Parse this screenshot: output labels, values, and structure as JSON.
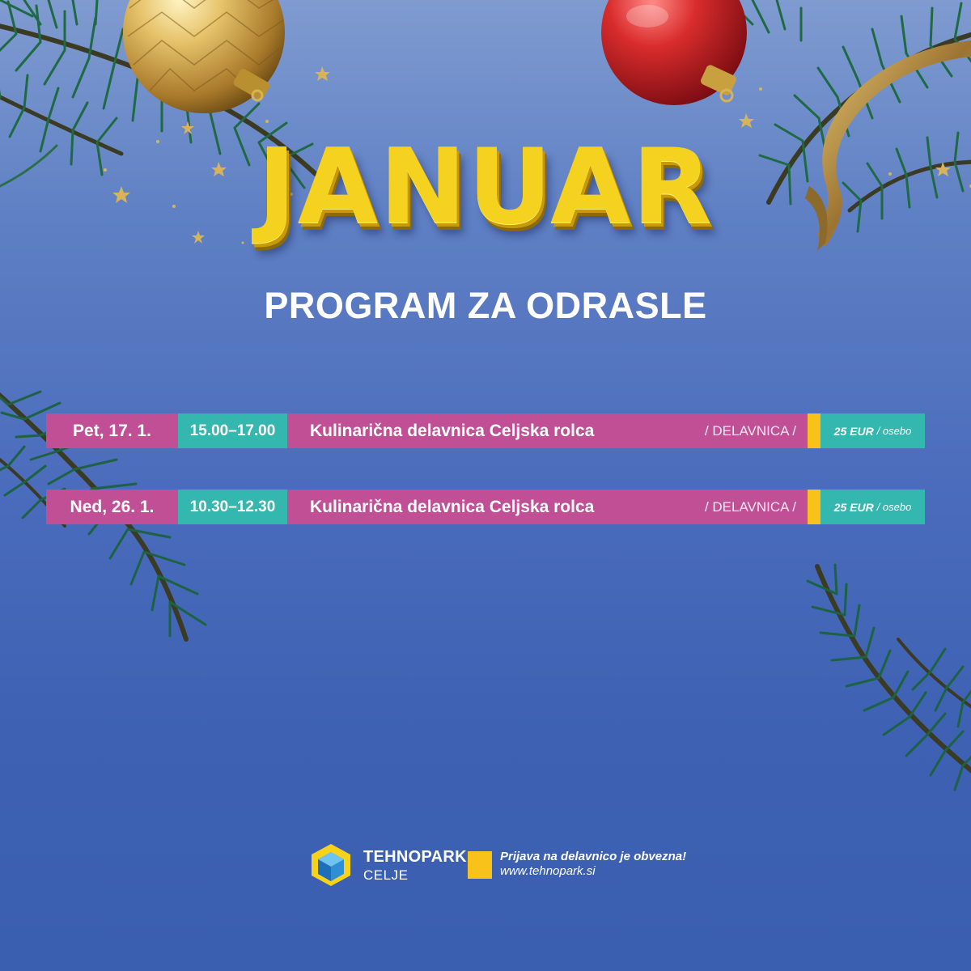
{
  "header": {
    "title": "JANUAR",
    "subtitle": "PROGRAM ZA ODRASLE"
  },
  "events": [
    {
      "date": "Pet, 17. 1.",
      "time": "15.00–17.00",
      "title": "Kulinarična delavnica Celjska rolca",
      "type": "/ DELAVNICA /",
      "price": "25 EUR",
      "price_unit": "/ osebo"
    },
    {
      "date": "Ned, 26. 1.",
      "time": "10.30–12.30",
      "title": "Kulinarična delavnica Celjska rolca",
      "type": "/ DELAVNICA /",
      "price": "25 EUR",
      "price_unit": "/ osebo"
    }
  ],
  "footer": {
    "brand_name": "TEHNOPARK",
    "brand_sub": "CELJE",
    "notice": "Prijava na delavnico je obvezna!",
    "url": "www.tehnopark.si"
  },
  "decorations": {
    "icons": [
      "gold-ornament-icon",
      "red-ornament-icon",
      "fir-branch-icon",
      "gold-ribbon-icon",
      "star-icon"
    ]
  },
  "colors": {
    "background": "#4b6cbc",
    "title_yellow": "#f4d21f",
    "magenta": "#c04f95",
    "teal": "#33b7ae",
    "accent_yellow": "#f8c21a"
  }
}
